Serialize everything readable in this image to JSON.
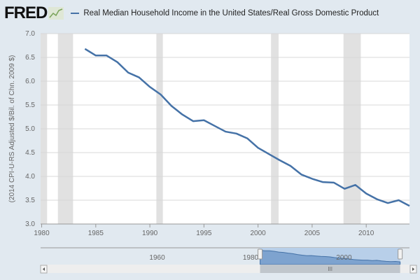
{
  "header": {
    "logo": "FRED",
    "logo_icon": "line-chart-icon"
  },
  "chart_data": {
    "type": "line",
    "title": "",
    "legend": "top-left",
    "ylabel": "(2014 CPI-U-RS Adjusted $/Bil. of Chn. 2009 $)",
    "xlabel": "",
    "xlim": [
      1979.9,
      2014
    ],
    "ylim": [
      3.0,
      7.0
    ],
    "x_ticks": [
      "1980",
      "1985",
      "1990",
      "1995",
      "2000",
      "2005",
      "2010"
    ],
    "y_ticks": [
      "3.0",
      "3.5",
      "4.0",
      "4.5",
      "5.0",
      "5.5",
      "6.0",
      "6.5",
      "7.0"
    ],
    "grid": true,
    "series": [
      {
        "name": "Real Median Household Income in the United States/Real Gross Domestic Product",
        "color": "#4572a7",
        "x": [
          1984,
          1985,
          1986,
          1987,
          1988,
          1989,
          1990,
          1991,
          1992,
          1993,
          1994,
          1995,
          1996,
          1997,
          1998,
          1999,
          2000,
          2001,
          2002,
          2003,
          2004,
          2005,
          2006,
          2007,
          2008,
          2009,
          2010,
          2011,
          2012,
          2013,
          2014
        ],
        "y": [
          6.68,
          6.54,
          6.54,
          6.4,
          6.18,
          6.08,
          5.88,
          5.72,
          5.48,
          5.3,
          5.16,
          5.18,
          5.06,
          4.94,
          4.9,
          4.8,
          4.6,
          4.47,
          4.34,
          4.22,
          4.04,
          3.95,
          3.88,
          3.87,
          3.74,
          3.82,
          3.64,
          3.52,
          3.44,
          3.5,
          3.38
        ]
      }
    ],
    "recessions": [
      [
        1979.9,
        1980.5
      ],
      [
        1981.5,
        1982.9
      ],
      [
        1990.6,
        1991.2
      ],
      [
        2001.2,
        2001.9
      ],
      [
        2007.9,
        2009.5
      ]
    ],
    "recession_color": "#e1e1e1"
  },
  "navigator": {
    "labels": [
      "1960",
      "1980",
      "2000"
    ],
    "range": [
      1984,
      2014
    ],
    "scroll_left_icon": "arrow-left-icon",
    "scroll_right_icon": "arrow-right-icon",
    "thumb_grip": "III"
  }
}
